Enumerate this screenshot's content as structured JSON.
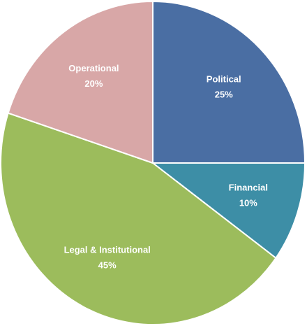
{
  "chart_data": {
    "type": "pie",
    "categories": [
      "Political",
      "Financial",
      "Legal & Institutional",
      "Operational"
    ],
    "values": [
      25,
      10,
      45,
      20
    ],
    "value_labels": [
      "25%",
      "10%",
      "45%",
      "20%"
    ],
    "colors": [
      "#4a6ea3",
      "#3d8ea6",
      "#9cbc5c",
      "#d8a7a7"
    ]
  }
}
